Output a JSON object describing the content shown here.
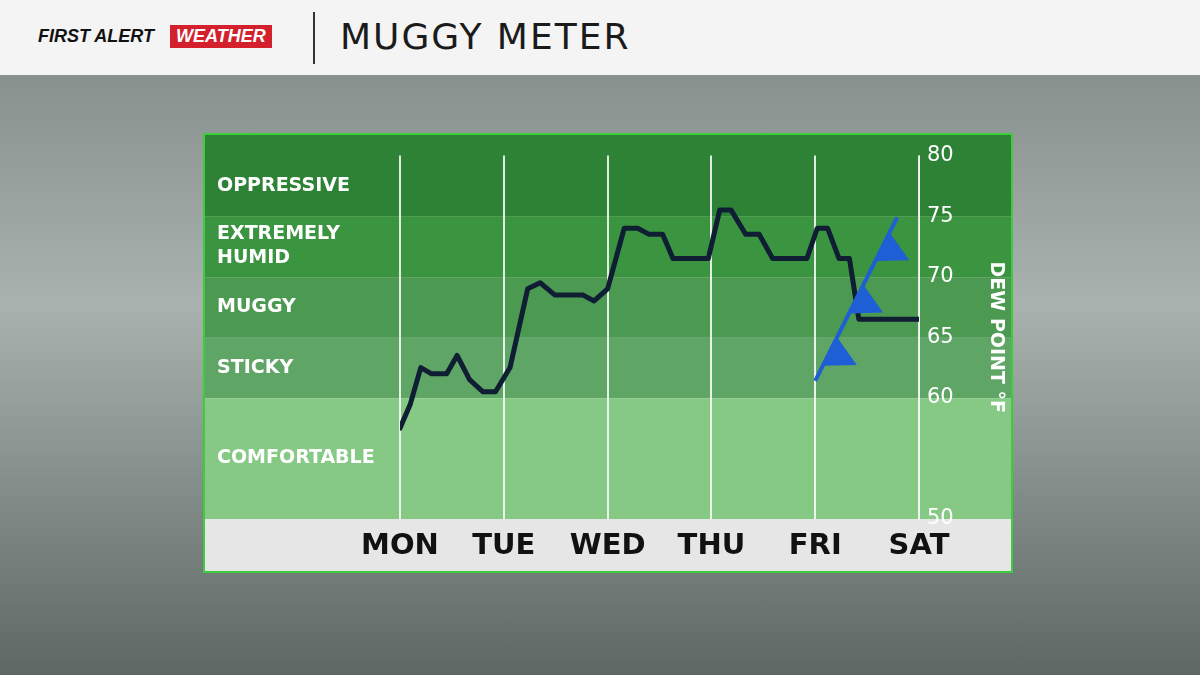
{
  "brand": [
    "FIRST ALERT",
    "WEATHER"
  ],
  "chart_data": {
    "type": "line",
    "title": "MUGGY METER",
    "y_label": "DEW POINT °F",
    "x": [
      0,
      0.1,
      0.2,
      0.3,
      0.45,
      0.55,
      0.67,
      0.8,
      0.92,
      1.06,
      1.23,
      1.35,
      1.49,
      1.63,
      1.76,
      1.87,
      2.0,
      2.16,
      2.29,
      2.4,
      2.53,
      2.63,
      2.97,
      3.08,
      3.19,
      3.33,
      3.46,
      3.59,
      3.92,
      4.02,
      4.12,
      4.23,
      4.33,
      4.42,
      4.79,
      5.0
    ],
    "values": [
      57.5,
      59.5,
      62.5,
      62,
      62,
      63.5,
      61.5,
      60.5,
      60.5,
      62.5,
      69,
      69.5,
      68.5,
      68.5,
      68.5,
      68,
      69,
      74,
      74,
      73.5,
      73.5,
      71.5,
      71.5,
      75.5,
      75.5,
      73.5,
      73.5,
      71.5,
      71.5,
      74,
      74,
      71.5,
      71.5,
      66.5,
      66.5,
      66.5
    ],
    "color": "#0f1e33",
    "xlim": [
      0,
      5
    ],
    "xticks": [
      {
        "value": 0,
        "label": "MON"
      },
      {
        "value": 1,
        "label": "TUE"
      },
      {
        "value": 2,
        "label": "WED"
      },
      {
        "value": 3,
        "label": "THU"
      },
      {
        "value": 4,
        "label": "FRI"
      },
      {
        "value": 5,
        "label": "SAT"
      }
    ],
    "ylim": [
      50,
      80
    ],
    "yticks": [
      50,
      60,
      65,
      70,
      75,
      80
    ],
    "grid": true,
    "bands": [
      {
        "label": [
          "OPPRESSIVE"
        ],
        "from": 75,
        "to": 80,
        "color": "#2d8236"
      },
      {
        "label": [
          "EXTREMELY",
          "HUMID"
        ],
        "from": 70,
        "to": 75,
        "color": "#3b943f"
      },
      {
        "label": [
          "MUGGY"
        ],
        "from": 65,
        "to": 70,
        "color": "#4c9a52"
      },
      {
        "label": [
          "STICKY"
        ],
        "from": 60,
        "to": 65,
        "color": "#5fa566"
      },
      {
        "label": [
          "COMFORTABLE"
        ],
        "from": 50,
        "to": 60,
        "color": "#86c985"
      }
    ]
  }
}
